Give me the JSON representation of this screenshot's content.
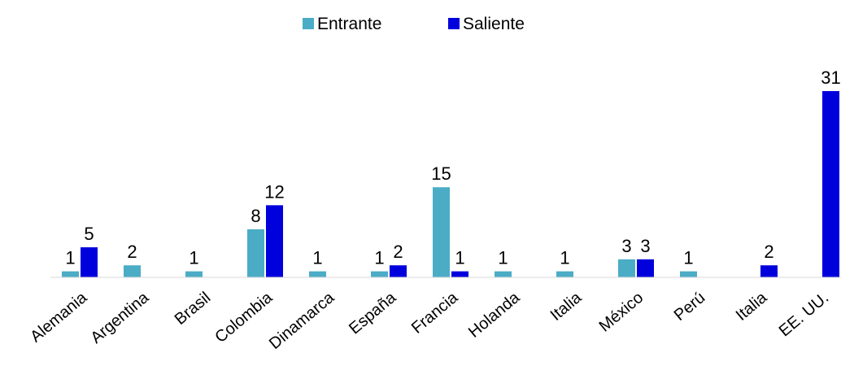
{
  "chart_data": {
    "type": "bar",
    "categories": [
      "Alemania",
      "Argentina",
      "Brasil",
      "Colombia",
      "Dinamarca",
      "España",
      "Francia",
      "Holanda",
      "Italia",
      "México",
      "Perú",
      "Italia",
      "EE. UU."
    ],
    "series": [
      {
        "name": "Entrante",
        "color": "#4bacc6",
        "values": [
          1,
          2,
          1,
          8,
          1,
          1,
          15,
          1,
          1,
          3,
          1,
          null,
          null
        ]
      },
      {
        "name": "Saliente",
        "color": "#0000dd",
        "values": [
          5,
          null,
          null,
          12,
          null,
          2,
          1,
          null,
          null,
          3,
          null,
          2,
          31
        ]
      }
    ],
    "ylim": [
      0,
      31
    ],
    "legend_position": "top-center",
    "grid": false,
    "xlabel": "",
    "ylabel": ""
  }
}
